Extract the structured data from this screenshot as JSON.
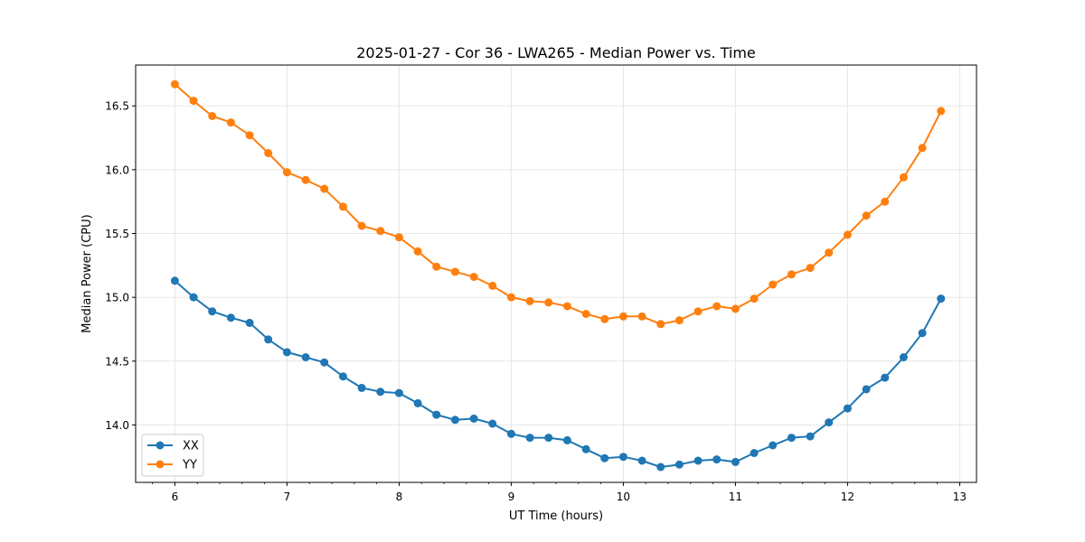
{
  "chart_data": {
    "type": "line",
    "title": "2025-01-27 - Cor 36 - LWA265 - Median Power vs. Time",
    "xlabel": "UT Time (hours)",
    "ylabel": "Median Power (CPU)",
    "xlim": [
      5.65,
      13.15
    ],
    "ylim": [
      13.55,
      16.82
    ],
    "xticks": [
      6,
      7,
      8,
      9,
      10,
      11,
      12,
      13
    ],
    "yticks": [
      14.0,
      14.5,
      15.0,
      15.5,
      16.0,
      16.5
    ],
    "grid": true,
    "legend_position": "bottom-left",
    "x": [
      6.0,
      6.167,
      6.333,
      6.5,
      6.667,
      6.833,
      7.0,
      7.167,
      7.333,
      7.5,
      7.667,
      7.833,
      8.0,
      8.167,
      8.333,
      8.5,
      8.667,
      8.833,
      9.0,
      9.167,
      9.333,
      9.5,
      9.667,
      9.833,
      10.0,
      10.167,
      10.333,
      10.5,
      10.667,
      10.833,
      11.0,
      11.167,
      11.333,
      11.5,
      11.667,
      11.833,
      12.0,
      12.167,
      12.333,
      12.5,
      12.667,
      12.833
    ],
    "series": [
      {
        "name": "XX",
        "color": "#1f77b4",
        "values": [
          15.13,
          15.0,
          14.89,
          14.84,
          14.8,
          14.67,
          14.57,
          14.53,
          14.49,
          14.38,
          14.29,
          14.26,
          14.25,
          14.17,
          14.08,
          14.04,
          14.05,
          14.01,
          13.93,
          13.9,
          13.9,
          13.88,
          13.81,
          13.74,
          13.75,
          13.72,
          13.67,
          13.69,
          13.72,
          13.73,
          13.71,
          13.78,
          13.84,
          13.9,
          13.91,
          14.02,
          14.13,
          14.28,
          14.37,
          14.53,
          14.72,
          14.99
        ]
      },
      {
        "name": "YY",
        "color": "#ff7f0e",
        "values": [
          16.67,
          16.54,
          16.42,
          16.37,
          16.27,
          16.13,
          15.98,
          15.92,
          15.85,
          15.71,
          15.56,
          15.52,
          15.47,
          15.36,
          15.24,
          15.2,
          15.16,
          15.09,
          15.0,
          14.97,
          14.96,
          14.93,
          14.87,
          14.83,
          14.85,
          14.85,
          14.79,
          14.82,
          14.89,
          14.93,
          14.91,
          14.99,
          15.1,
          15.18,
          15.23,
          15.35,
          15.49,
          15.64,
          15.75,
          15.94,
          16.17,
          16.46
        ]
      }
    ]
  }
}
